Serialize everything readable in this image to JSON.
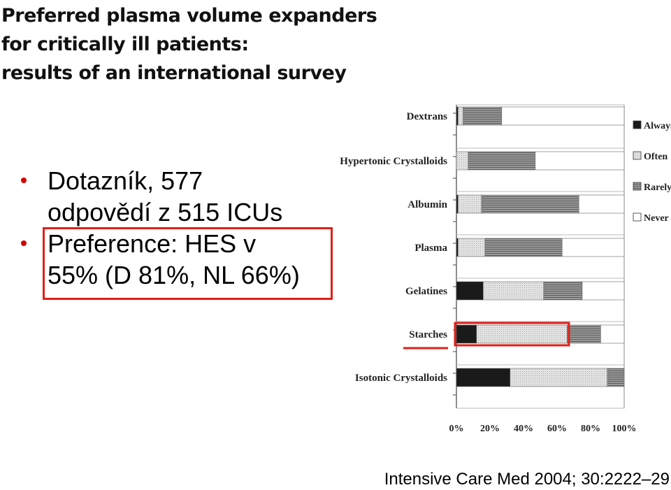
{
  "title": {
    "line1": "Preferred plasma volume expanders",
    "line2": "for critically ill patients:",
    "line3": "results of an international survey"
  },
  "bullets": [
    {
      "text": "Dotazník, 577\nodpovědí z 515 ICUs"
    },
    {
      "text": "Preference: HES v\n55% (D 81%, NL 66%)"
    }
  ],
  "citation": "Intensive Care Med 2004; 30:2222–29",
  "colors": {
    "always": "#1a1a1a",
    "often": "#dcdcdc",
    "rarely": "#8c8c8c",
    "never": "#ffffff",
    "highlight": "#e0201a",
    "bullet": "#d40000"
  },
  "chart_data": {
    "type": "bar",
    "orientation": "horizontal",
    "stacked": true,
    "categories": [
      "Dextrans",
      "Hypertonic Crystalloids",
      "Albumin",
      "Plasma",
      "Gelatines",
      "Starches",
      "Isotonic Crystalloids"
    ],
    "series": [
      {
        "name": "Always",
        "values": [
          1,
          0,
          1,
          1,
          16,
          12,
          32
        ]
      },
      {
        "name": "Often",
        "values": [
          3,
          7,
          14,
          16,
          36,
          54,
          58
        ]
      },
      {
        "name": "Rarely",
        "values": [
          23,
          40,
          58,
          46,
          23,
          20,
          10
        ]
      },
      {
        "name": "Never",
        "values": [
          73,
          53,
          27,
          37,
          25,
          14,
          0
        ]
      }
    ],
    "x_ticks": [
      "0%",
      "20%",
      "40%",
      "60%",
      "80%",
      "100%"
    ],
    "xlim": [
      0,
      100
    ],
    "legend": "right",
    "highlighted_category": "Starches"
  }
}
